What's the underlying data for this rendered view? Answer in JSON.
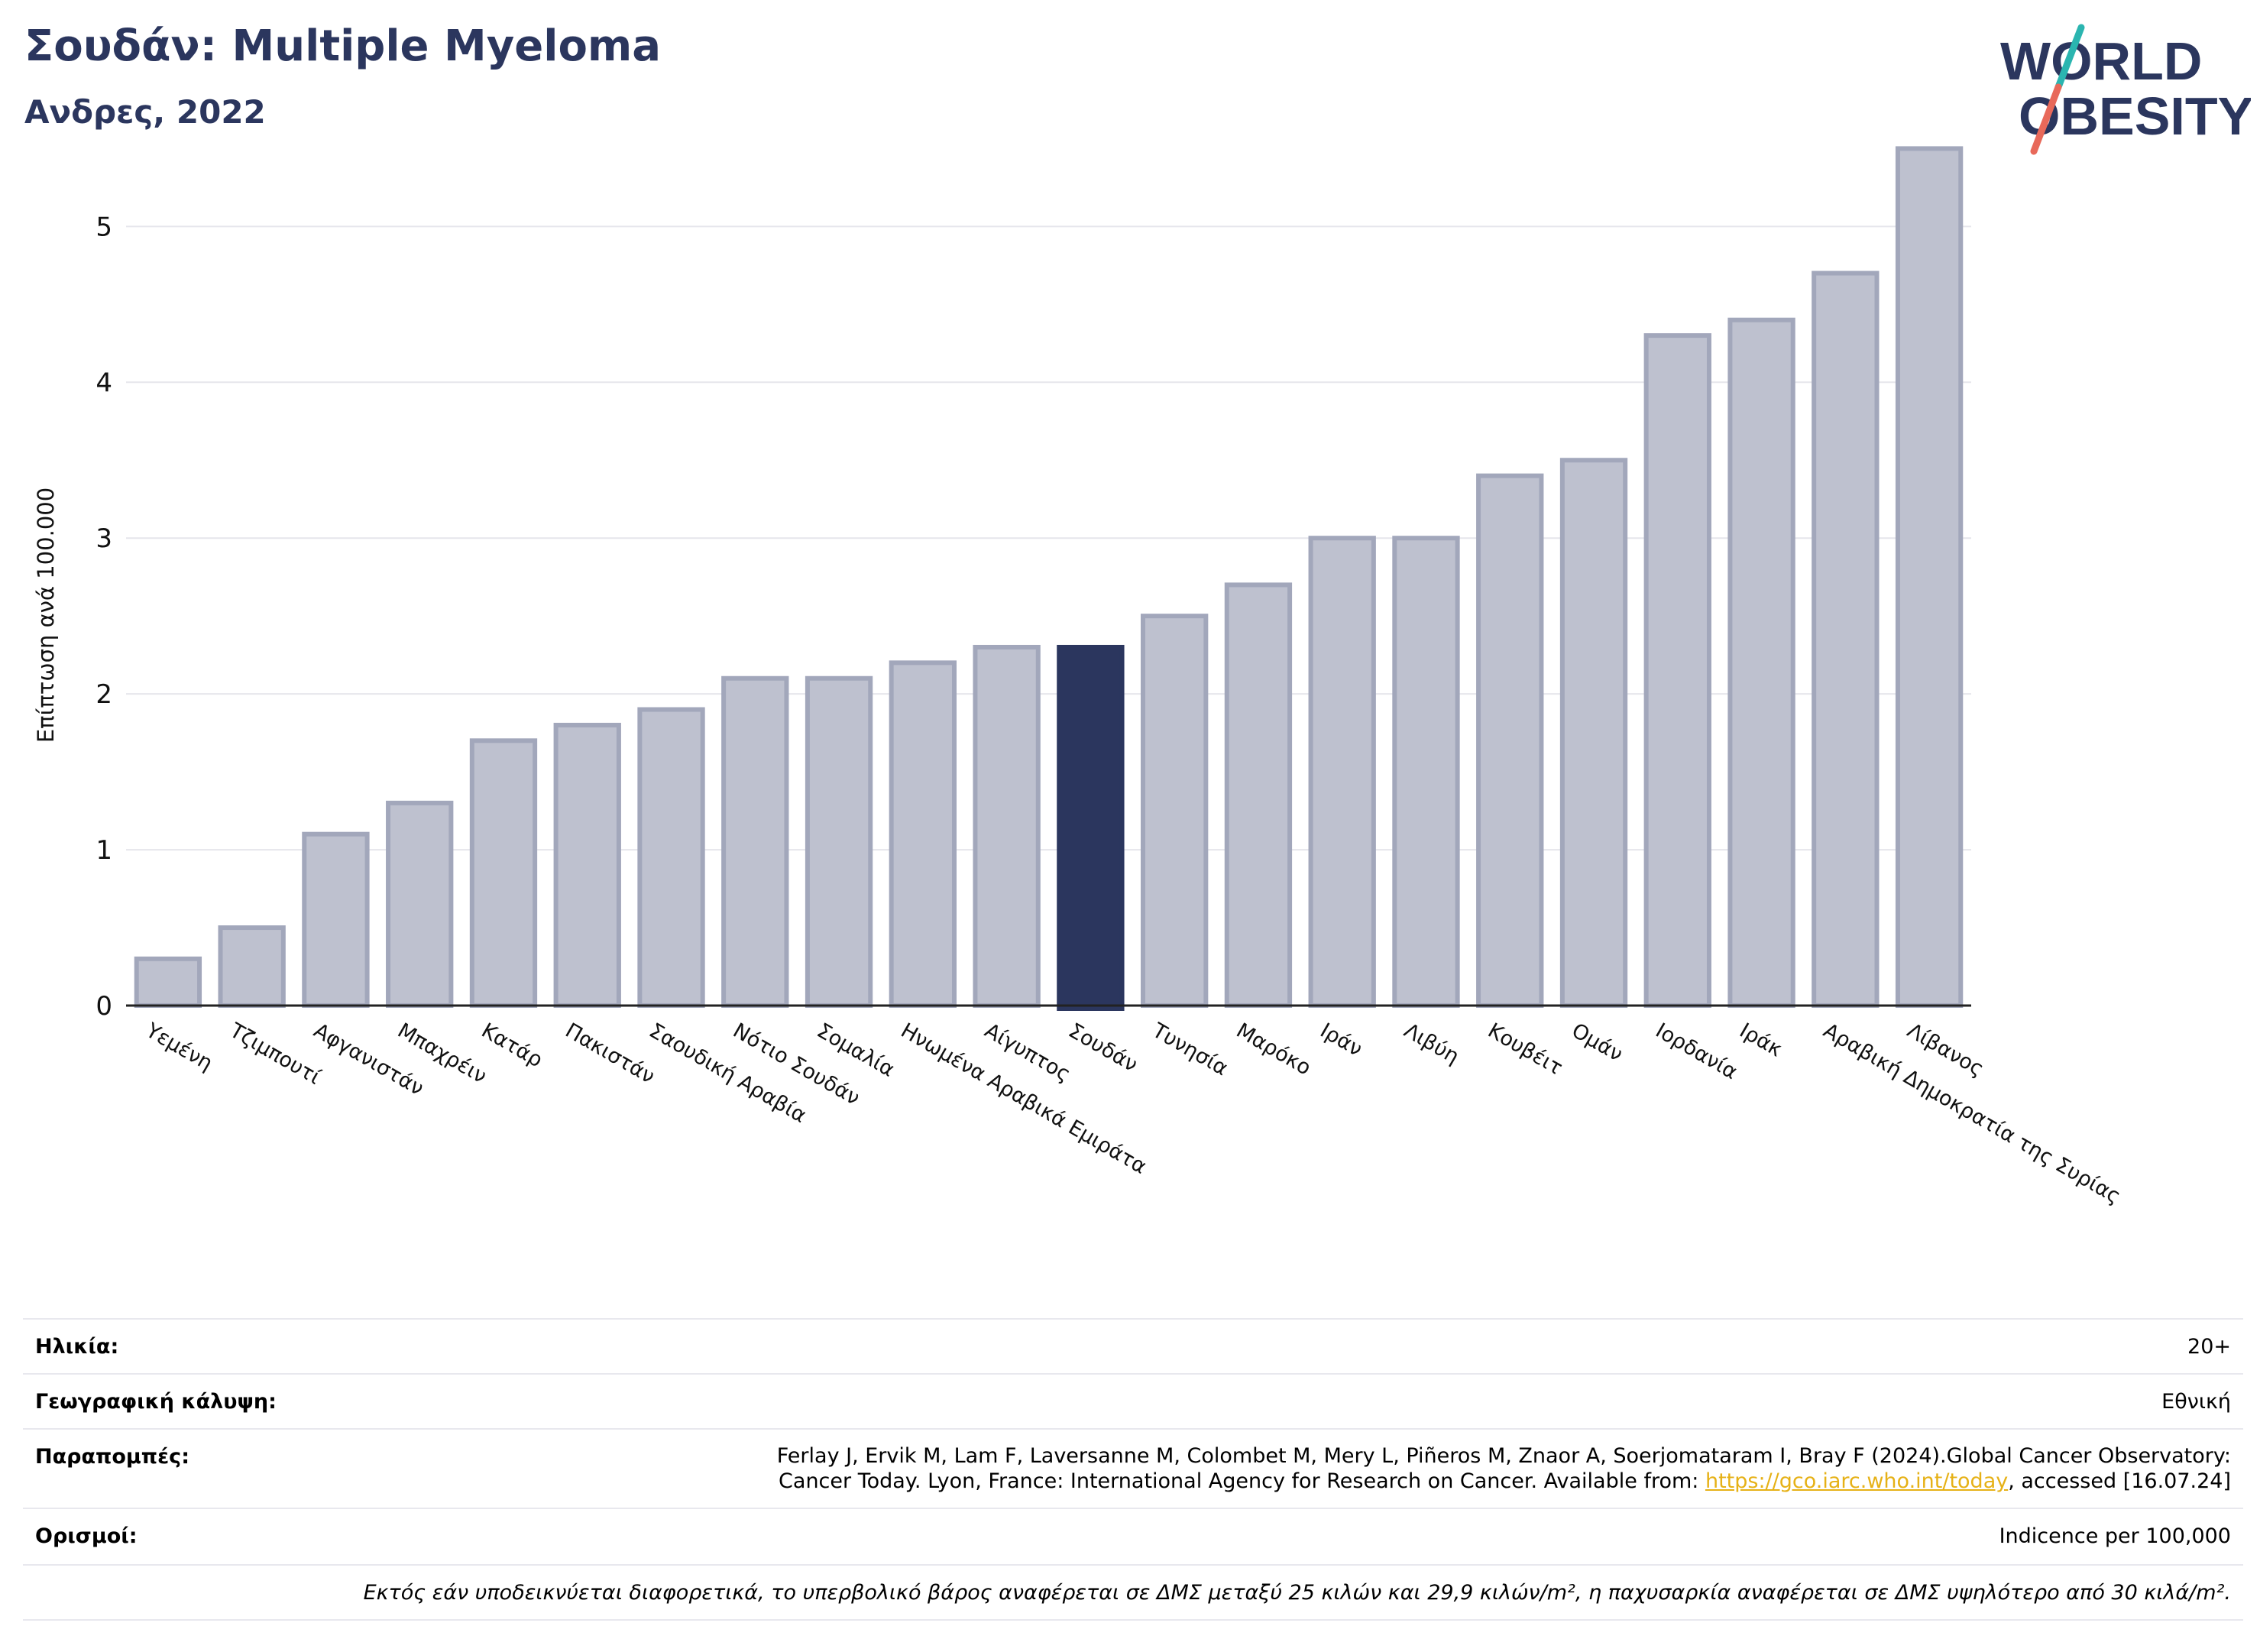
{
  "header": {
    "title": "Σουδάν: Multiple Myeloma",
    "subtitle": "Ανδρες, 2022"
  },
  "logo": {
    "line1": "WORLD",
    "line2": "OBESITY",
    "colors": {
      "text": "#2b365e",
      "slash_top": "#2bb5b0",
      "slash_bottom": "#e8695a"
    }
  },
  "chart_data": {
    "type": "bar",
    "ylabel": "Επίπτωση ανά 100.000",
    "ylim": [
      0,
      5.6
    ],
    "yticks": [
      0,
      1,
      2,
      3,
      4,
      5
    ],
    "grid": true,
    "highlight": "Σουδάν",
    "colors": {
      "bar": "#bec1cf",
      "bar_edge": "#a2a7bb",
      "highlight": "#2b365e",
      "grid": "#e6e6ec"
    },
    "categories": [
      "Υεμένη",
      "Τζιμπουτί",
      "Αφγανιστάν",
      "Μπαχρέιν",
      "Κατάρ",
      "Πακιστάν",
      "Σαουδική Αραβία",
      "Νότιο Σουδάν",
      "Σομαλία",
      "Ηνωμένα Αραβικά Εμιράτα",
      "Αίγυπτος",
      "Σουδάν",
      "Τυνησία",
      "Μαρόκο",
      "Ιράν",
      "Λιβύη",
      "Κουβέιτ",
      "Ομάν",
      "Ιορδανία",
      "Ιράκ",
      "Αραβική Δημοκρατία της Συρίας",
      "Λίβανος"
    ],
    "values": [
      0.3,
      0.5,
      1.1,
      1.3,
      1.7,
      1.8,
      1.9,
      2.1,
      2.1,
      2.2,
      2.3,
      2.3,
      2.5,
      2.7,
      3.0,
      3.0,
      3.4,
      3.5,
      4.3,
      4.4,
      4.7,
      5.5
    ]
  },
  "info": {
    "age_label": "Ηλικία:",
    "age_value": "20+",
    "coverage_label": "Γεωγραφική κάλυψη:",
    "coverage_value": "Εθνική",
    "refs_label": "Παραπομπές:",
    "refs_line1": "Ferlay J, Ervik M, Lam F, Laversanne M, Colombet M, Mery L, Piñeros M, Znaor A, Soerjomataram I, Bray F (2024).Global Cancer Observatory:",
    "refs_line2_pre": "Cancer Today. Lyon, France: International Agency for Research on Cancer. Available from: ",
    "refs_link": "https://gco.iarc.who.int/today",
    "refs_line2_post": ", accessed [16.07.24]",
    "def_label": "Ορισμοί:",
    "def_value": "Indicence per 100,000",
    "footnote": "Εκτός εάν υποδεικνύεται διαφορετικά, το υπερβολικό βάρος αναφέρεται σε ΔΜΣ μεταξύ 25 κιλών και 29,9 κιλών/m², η παχυσαρκία αναφέρεται σε ΔΜΣ υψηλότερο από 30 κιλά/m²."
  }
}
